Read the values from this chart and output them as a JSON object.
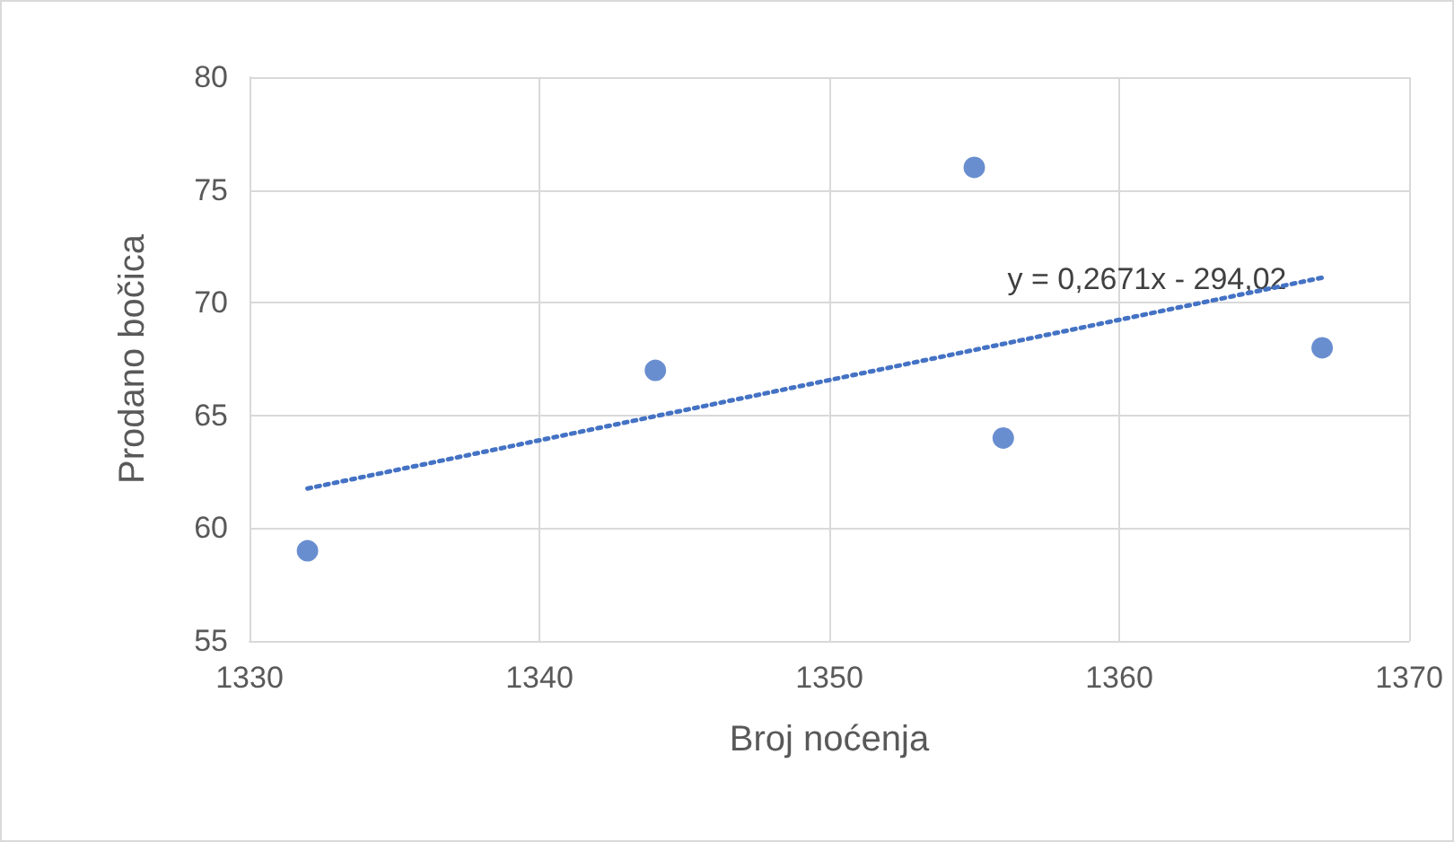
{
  "chart_data": {
    "type": "scatter",
    "xlabel": "Broj noćenja",
    "ylabel": "Prodano bočica",
    "series": [
      {
        "color": "#4472c4",
        "marker": "circle",
        "x": [
          1332,
          1344,
          1355,
          1356,
          1367
        ],
        "values": [
          59,
          67,
          76,
          64,
          68
        ]
      },
      {
        "type": "line",
        "color": "#4472c4",
        "marker": "none",
        "line_style": "dotted",
        "x": [
          1332,
          1367
        ],
        "values": [
          61.76,
          71.11
        ]
      }
    ],
    "annotations": [
      "y = 0,2671x - 294,02"
    ],
    "xlim": [
      1330,
      1370
    ],
    "xticks": [
      1330,
      1340,
      1350,
      1360,
      1370
    ],
    "ylim": [
      55,
      80
    ],
    "yticks": [
      55,
      60,
      65,
      70,
      75,
      80
    ],
    "grid": true
  }
}
